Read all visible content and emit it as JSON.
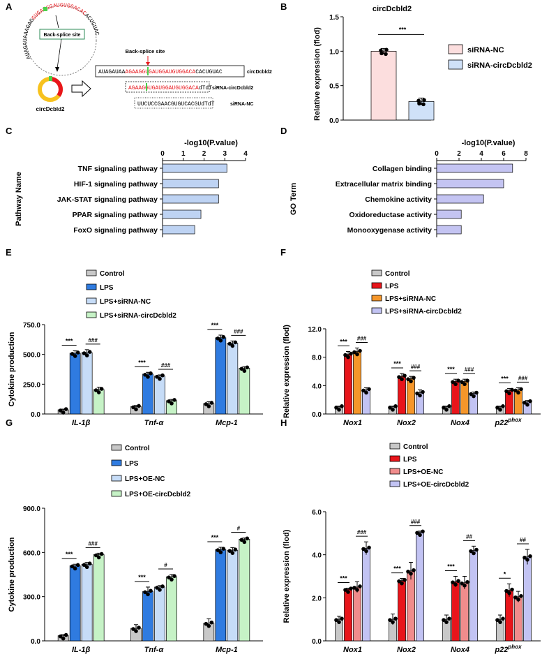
{
  "panel_letters": [
    "A",
    "B",
    "C",
    "D",
    "E",
    "F",
    "G",
    "H"
  ],
  "panelA": {
    "circle_label": "circDcbld2",
    "ring_sequence_black": "AUAGAUAAAGAG",
    "ring_sequence_red": "GUGAUGGAUGUGGACAC",
    "ring_sequence_tail": "ACUGUAC",
    "backsplice_box": "Back-splice site",
    "backsplice_arrow_label": "Back-splice site",
    "rows": [
      {
        "seg1": "AUAGAUAA",
        "seg2": "AGAAG",
        "seg3": "GUGAUGGAUGUGGACA",
        "seg4": "CACUGUAC",
        "label": "circDcbld2"
      },
      {
        "seg1": "",
        "seg2": "AGAAG",
        "seg3": "GUGAUGGAUGUGGACA",
        "seg4": "dTdT",
        "label": "siRNA-circDcbld2"
      },
      {
        "seg1": "UUCUCCGAACGUGUCACGUdTdT",
        "seg2": "",
        "seg3": "",
        "seg4": "",
        "label": "siRNA-NC"
      }
    ]
  },
  "colors": {
    "control": "#c8c8c8",
    "lps_blue": "#2f7be0",
    "light_blue": "#c6dcf7",
    "light_green": "#c6f2c6",
    "red": "#e8151b",
    "orange": "#f5962a",
    "lavender": "#c2c3f3",
    "salmon": "#f08c8c",
    "pink_nc": "#fcdede",
    "blue_kd": "#cfe1f8",
    "path_bar": "#bed3f3",
    "go_bar": "#c4c4f2"
  },
  "chart_data": [
    {
      "id": "B",
      "type": "bar",
      "title": "circDcbld2",
      "ylabel": "Relative expression (flod)",
      "ylim": [
        0,
        1.5
      ],
      "yticks": [
        "0.0",
        "0.5",
        "1.0",
        "1.5"
      ],
      "ytick_values": [
        0,
        0.5,
        1.0,
        1.5
      ],
      "categories": [
        "siRNA-NC",
        "siRNA-circDcbld2"
      ],
      "values": [
        1.0,
        0.27
      ],
      "errors": [
        0.04,
        0.05
      ],
      "legend": [
        "siRNA-NC",
        "siRNA-circDcbld2"
      ],
      "significance": [
        "***"
      ]
    },
    {
      "id": "C",
      "type": "bar",
      "orientation": "horizontal",
      "title": "-log10(P.value)",
      "ylabel": "Pathway Name",
      "xlim": [
        0,
        4
      ],
      "xticks": [
        "0",
        "1",
        "2",
        "3",
        "4"
      ],
      "xtick_values": [
        0,
        1,
        2,
        3,
        4
      ],
      "categories": [
        "TNF signaling pathway",
        "HIF-1 signaling pathway",
        "JAK-STAT signaling pathway",
        "PPAR signaling pathway",
        "FoxO signaling pathway"
      ],
      "values": [
        3.1,
        2.7,
        2.7,
        1.85,
        1.55
      ]
    },
    {
      "id": "D",
      "type": "bar",
      "orientation": "horizontal",
      "title": "-log10(P.value)",
      "ylabel": "GO Term",
      "xlim": [
        0,
        8
      ],
      "xticks": [
        "0",
        "2",
        "4",
        "6",
        "8"
      ],
      "xtick_values": [
        0,
        2,
        4,
        6,
        8
      ],
      "categories": [
        "Collagen binding",
        "Extracellular matrix binding",
        "Chemokine activity",
        "Oxidoreductase activity",
        "Monooxygenase activity"
      ],
      "values": [
        6.8,
        6.0,
        4.2,
        2.2,
        2.2
      ]
    },
    {
      "id": "E",
      "type": "bar",
      "ylabel": "Cytokine production",
      "ylim": [
        0,
        750
      ],
      "yticks": [
        "0.0",
        "250.0",
        "500.0",
        "750.0"
      ],
      "ytick_values": [
        0,
        250,
        500,
        750
      ],
      "categories": [
        "IL-1β",
        "Tnf-α",
        "Mcp-1"
      ],
      "series": [
        {
          "name": "Control",
          "values": [
            35,
            62,
            88
          ],
          "errors": [
            6,
            10,
            15
          ]
        },
        {
          "name": "LPS",
          "values": [
            510,
            335,
            640
          ],
          "errors": [
            20,
            15,
            22
          ]
        },
        {
          "name": "LPS+siRNA-NC",
          "values": [
            515,
            318,
            595
          ],
          "errors": [
            25,
            10,
            18
          ]
        },
        {
          "name": "LPS+siRNA-circDcbld2",
          "values": [
            205,
            112,
            385
          ],
          "errors": [
            20,
            10,
            12
          ]
        }
      ],
      "significance": [
        [
          "***",
          "###"
        ],
        [
          "***",
          "###"
        ],
        [
          "***",
          "###"
        ]
      ]
    },
    {
      "id": "F",
      "type": "bar",
      "ylabel": "Relative expression (flod)",
      "ylim": [
        0,
        12
      ],
      "yticks": [
        "0.0",
        "4.0",
        "8.0",
        "12.0"
      ],
      "ytick_values": [
        0,
        4,
        8,
        12
      ],
      "categories": [
        "Nox1",
        "Nox2",
        "Nox4",
        "p22phox"
      ],
      "series": [
        {
          "name": "Control",
          "values": [
            1.0,
            1.0,
            1.0,
            1.0
          ],
          "errors": [
            0.1,
            0.1,
            0.1,
            0.1
          ]
        },
        {
          "name": "LPS",
          "values": [
            8.4,
            5.3,
            4.6,
            3.3
          ],
          "errors": [
            0.4,
            0.4,
            0.3,
            0.3
          ]
        },
        {
          "name": "LPS+siRNA-NC",
          "values": [
            8.8,
            5.0,
            4.6,
            3.4
          ],
          "errors": [
            0.5,
            0.3,
            0.3,
            0.3
          ]
        },
        {
          "name": "LPS+siRNA-circDcbld2",
          "values": [
            3.4,
            3.0,
            2.9,
            1.7
          ],
          "errors": [
            0.3,
            0.4,
            0.2,
            0.2
          ]
        }
      ],
      "significance": [
        [
          "***",
          "###"
        ],
        [
          "***",
          "###"
        ],
        [
          "***",
          "###"
        ],
        [
          "***",
          "###"
        ]
      ]
    },
    {
      "id": "G",
      "type": "bar",
      "ylabel": "Cytokine production",
      "ylim": [
        0,
        900
      ],
      "yticks": [
        "0.0",
        "300.0",
        "600.0",
        "900.0"
      ],
      "ytick_values": [
        0,
        300,
        600,
        900
      ],
      "categories": [
        "IL-1β",
        "Tnf-α",
        "Mcp-1"
      ],
      "series": [
        {
          "name": "Control",
          "values": [
            35,
            85,
            120
          ],
          "errors": [
            8,
            25,
            30
          ]
        },
        {
          "name": "LPS",
          "values": [
            510,
            335,
            620
          ],
          "errors": [
            10,
            30,
            15
          ]
        },
        {
          "name": "LPS+OE-NC",
          "values": [
            520,
            365,
            615
          ],
          "errors": [
            12,
            10,
            18
          ]
        },
        {
          "name": "LPS+OE-circDcbld2",
          "values": [
            585,
            435,
            690
          ],
          "errors": [
            10,
            15,
            8
          ]
        }
      ],
      "significance": [
        [
          "***",
          "###"
        ],
        [
          "***",
          "#"
        ],
        [
          "***",
          "#"
        ]
      ]
    },
    {
      "id": "H",
      "type": "bar",
      "ylabel": "Relative expression (flod)",
      "ylim": [
        0,
        6
      ],
      "yticks": [
        "0.0",
        "2.0",
        "4.0",
        "6.0"
      ],
      "ytick_values": [
        0,
        2,
        4,
        6
      ],
      "categories": [
        "Nox1",
        "Nox2",
        "Nox4",
        "p22phox"
      ],
      "series": [
        {
          "name": "Control",
          "values": [
            1.0,
            1.0,
            1.0,
            1.0
          ],
          "errors": [
            0.15,
            0.25,
            0.2,
            0.2
          ]
        },
        {
          "name": "LPS",
          "values": [
            2.4,
            2.8,
            2.75,
            2.35
          ],
          "errors": [
            0.05,
            0.1,
            0.25,
            0.3
          ]
        },
        {
          "name": "LPS+OE-NC",
          "values": [
            2.5,
            3.25,
            2.7,
            2.05
          ],
          "errors": [
            0.25,
            0.4,
            0.3,
            0.25
          ]
        },
        {
          "name": "LPS+OE-circDcbld2",
          "values": [
            4.3,
            5.05,
            4.2,
            3.9
          ],
          "errors": [
            0.3,
            0.05,
            0.2,
            0.35
          ]
        }
      ],
      "significance": [
        [
          "***",
          "###"
        ],
        [
          "***",
          "###"
        ],
        [
          "***",
          "##"
        ],
        [
          "*",
          "##"
        ]
      ]
    }
  ]
}
